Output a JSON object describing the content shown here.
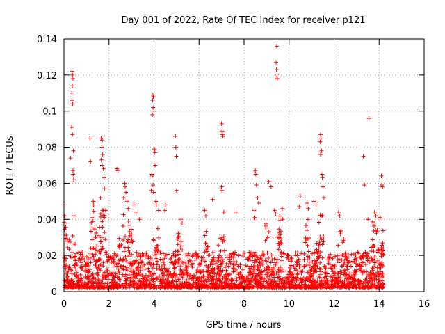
{
  "chart_data": {
    "type": "scatter",
    "title": "Day 001 of 2022, Rate Of TEC Index for receiver p121",
    "xlabel": "GPS time / hours",
    "ylabel": "ROTI / TECUs",
    "xlim": [
      0,
      16
    ],
    "ylim": [
      0,
      0.14
    ],
    "xticks": [
      0,
      2,
      4,
      6,
      8,
      10,
      12,
      14,
      16
    ],
    "xtick_labels": [
      "0",
      "2",
      "4",
      "6",
      "8",
      "10",
      "12",
      "14",
      "16"
    ],
    "yticks": [
      0,
      0.02,
      0.04,
      0.06,
      0.08,
      0.1,
      0.12,
      0.14
    ],
    "ytick_labels": [
      "0",
      "0.02",
      "0.04",
      "0.06",
      "0.08",
      "0.1",
      "0.12",
      "0.14"
    ],
    "grid": true,
    "marker": "+",
    "series": [
      {
        "name": "ROTI",
        "color": "#ff0000",
        "baseline_range_hours": [
          0.0,
          14.2
        ],
        "highlight_points": [
          {
            "x": 0.0,
            "y": 0.048
          },
          {
            "x": 0.02,
            "y": 0.042
          },
          {
            "x": 0.05,
            "y": 0.038
          },
          {
            "x": 0.36,
            "y": 0.122
          },
          {
            "x": 0.38,
            "y": 0.12
          },
          {
            "x": 0.4,
            "y": 0.118
          },
          {
            "x": 0.37,
            "y": 0.114
          },
          {
            "x": 0.35,
            "y": 0.11
          },
          {
            "x": 0.36,
            "y": 0.106
          },
          {
            "x": 0.39,
            "y": 0.104
          },
          {
            "x": 0.34,
            "y": 0.091
          },
          {
            "x": 0.38,
            "y": 0.087
          },
          {
            "x": 0.42,
            "y": 0.078
          },
          {
            "x": 0.4,
            "y": 0.067
          },
          {
            "x": 0.41,
            "y": 0.065
          },
          {
            "x": 0.43,
            "y": 0.062
          },
          {
            "x": 0.3,
            "y": 0.074
          },
          {
            "x": 0.45,
            "y": 0.042
          },
          {
            "x": 1.15,
            "y": 0.085
          },
          {
            "x": 1.18,
            "y": 0.072
          },
          {
            "x": 1.3,
            "y": 0.05
          },
          {
            "x": 1.32,
            "y": 0.048
          },
          {
            "x": 1.25,
            "y": 0.041
          },
          {
            "x": 1.65,
            "y": 0.085
          },
          {
            "x": 1.7,
            "y": 0.084
          },
          {
            "x": 1.68,
            "y": 0.08
          },
          {
            "x": 1.72,
            "y": 0.076
          },
          {
            "x": 1.66,
            "y": 0.073
          },
          {
            "x": 1.7,
            "y": 0.07
          },
          {
            "x": 1.75,
            "y": 0.068
          },
          {
            "x": 1.78,
            "y": 0.063
          },
          {
            "x": 1.8,
            "y": 0.057
          },
          {
            "x": 1.62,
            "y": 0.052
          },
          {
            "x": 1.85,
            "y": 0.045
          },
          {
            "x": 2.35,
            "y": 0.068
          },
          {
            "x": 2.4,
            "y": 0.067
          },
          {
            "x": 2.7,
            "y": 0.06
          },
          {
            "x": 2.72,
            "y": 0.058
          },
          {
            "x": 2.75,
            "y": 0.055
          },
          {
            "x": 2.65,
            "y": 0.052
          },
          {
            "x": 2.8,
            "y": 0.05
          },
          {
            "x": 2.85,
            "y": 0.046
          },
          {
            "x": 3.1,
            "y": 0.048
          },
          {
            "x": 3.2,
            "y": 0.044
          },
          {
            "x": 3.35,
            "y": 0.04
          },
          {
            "x": 3.95,
            "y": 0.109
          },
          {
            "x": 3.97,
            "y": 0.108
          },
          {
            "x": 3.94,
            "y": 0.106
          },
          {
            "x": 3.96,
            "y": 0.102
          },
          {
            "x": 4.0,
            "y": 0.1
          },
          {
            "x": 3.93,
            "y": 0.098
          },
          {
            "x": 4.02,
            "y": 0.079
          },
          {
            "x": 4.04,
            "y": 0.077
          },
          {
            "x": 4.05,
            "y": 0.07
          },
          {
            "x": 3.9,
            "y": 0.065
          },
          {
            "x": 3.92,
            "y": 0.064
          },
          {
            "x": 3.95,
            "y": 0.059
          },
          {
            "x": 3.88,
            "y": 0.056
          },
          {
            "x": 3.98,
            "y": 0.055
          },
          {
            "x": 4.08,
            "y": 0.05
          },
          {
            "x": 4.1,
            "y": 0.048
          },
          {
            "x": 4.2,
            "y": 0.045
          },
          {
            "x": 4.5,
            "y": 0.048
          },
          {
            "x": 4.48,
            "y": 0.045
          },
          {
            "x": 4.95,
            "y": 0.086
          },
          {
            "x": 4.97,
            "y": 0.08
          },
          {
            "x": 4.99,
            "y": 0.075
          },
          {
            "x": 5.0,
            "y": 0.056
          },
          {
            "x": 5.2,
            "y": 0.04
          },
          {
            "x": 5.25,
            "y": 0.038
          },
          {
            "x": 6.25,
            "y": 0.045
          },
          {
            "x": 6.3,
            "y": 0.042
          },
          {
            "x": 6.6,
            "y": 0.051
          },
          {
            "x": 7.0,
            "y": 0.093
          },
          {
            "x": 7.02,
            "y": 0.089
          },
          {
            "x": 7.04,
            "y": 0.087
          },
          {
            "x": 7.06,
            "y": 0.086
          },
          {
            "x": 7.0,
            "y": 0.058
          },
          {
            "x": 7.02,
            "y": 0.056
          },
          {
            "x": 7.1,
            "y": 0.044
          },
          {
            "x": 7.65,
            "y": 0.044
          },
          {
            "x": 8.5,
            "y": 0.067
          },
          {
            "x": 8.52,
            "y": 0.065
          },
          {
            "x": 8.55,
            "y": 0.059
          },
          {
            "x": 8.6,
            "y": 0.052
          },
          {
            "x": 8.65,
            "y": 0.049
          },
          {
            "x": 8.45,
            "y": 0.045
          },
          {
            "x": 8.48,
            "y": 0.041
          },
          {
            "x": 9.1,
            "y": 0.061
          },
          {
            "x": 9.2,
            "y": 0.058
          },
          {
            "x": 9.35,
            "y": 0.045
          },
          {
            "x": 9.4,
            "y": 0.043
          },
          {
            "x": 9.45,
            "y": 0.136
          },
          {
            "x": 9.42,
            "y": 0.127
          },
          {
            "x": 9.44,
            "y": 0.123
          },
          {
            "x": 9.46,
            "y": 0.119
          },
          {
            "x": 9.48,
            "y": 0.118
          },
          {
            "x": 9.7,
            "y": 0.046
          },
          {
            "x": 9.72,
            "y": 0.04
          },
          {
            "x": 10.5,
            "y": 0.053
          },
          {
            "x": 10.45,
            "y": 0.047
          },
          {
            "x": 10.8,
            "y": 0.049
          },
          {
            "x": 10.85,
            "y": 0.046
          },
          {
            "x": 11.1,
            "y": 0.05
          },
          {
            "x": 11.2,
            "y": 0.048
          },
          {
            "x": 11.4,
            "y": 0.087
          },
          {
            "x": 11.42,
            "y": 0.085
          },
          {
            "x": 11.38,
            "y": 0.083
          },
          {
            "x": 11.44,
            "y": 0.078
          },
          {
            "x": 11.4,
            "y": 0.076
          },
          {
            "x": 11.46,
            "y": 0.065
          },
          {
            "x": 11.48,
            "y": 0.063
          },
          {
            "x": 11.5,
            "y": 0.058
          },
          {
            "x": 11.55,
            "y": 0.052
          },
          {
            "x": 12.2,
            "y": 0.044
          },
          {
            "x": 12.25,
            "y": 0.042
          },
          {
            "x": 13.3,
            "y": 0.075
          },
          {
            "x": 13.35,
            "y": 0.059
          },
          {
            "x": 13.55,
            "y": 0.096
          },
          {
            "x": 13.5,
            "y": 0.04
          },
          {
            "x": 13.8,
            "y": 0.044
          },
          {
            "x": 13.85,
            "y": 0.042
          },
          {
            "x": 14.1,
            "y": 0.064
          },
          {
            "x": 14.12,
            "y": 0.059
          },
          {
            "x": 14.15,
            "y": 0.058
          },
          {
            "x": 14.05,
            "y": 0.041
          }
        ]
      }
    ]
  }
}
